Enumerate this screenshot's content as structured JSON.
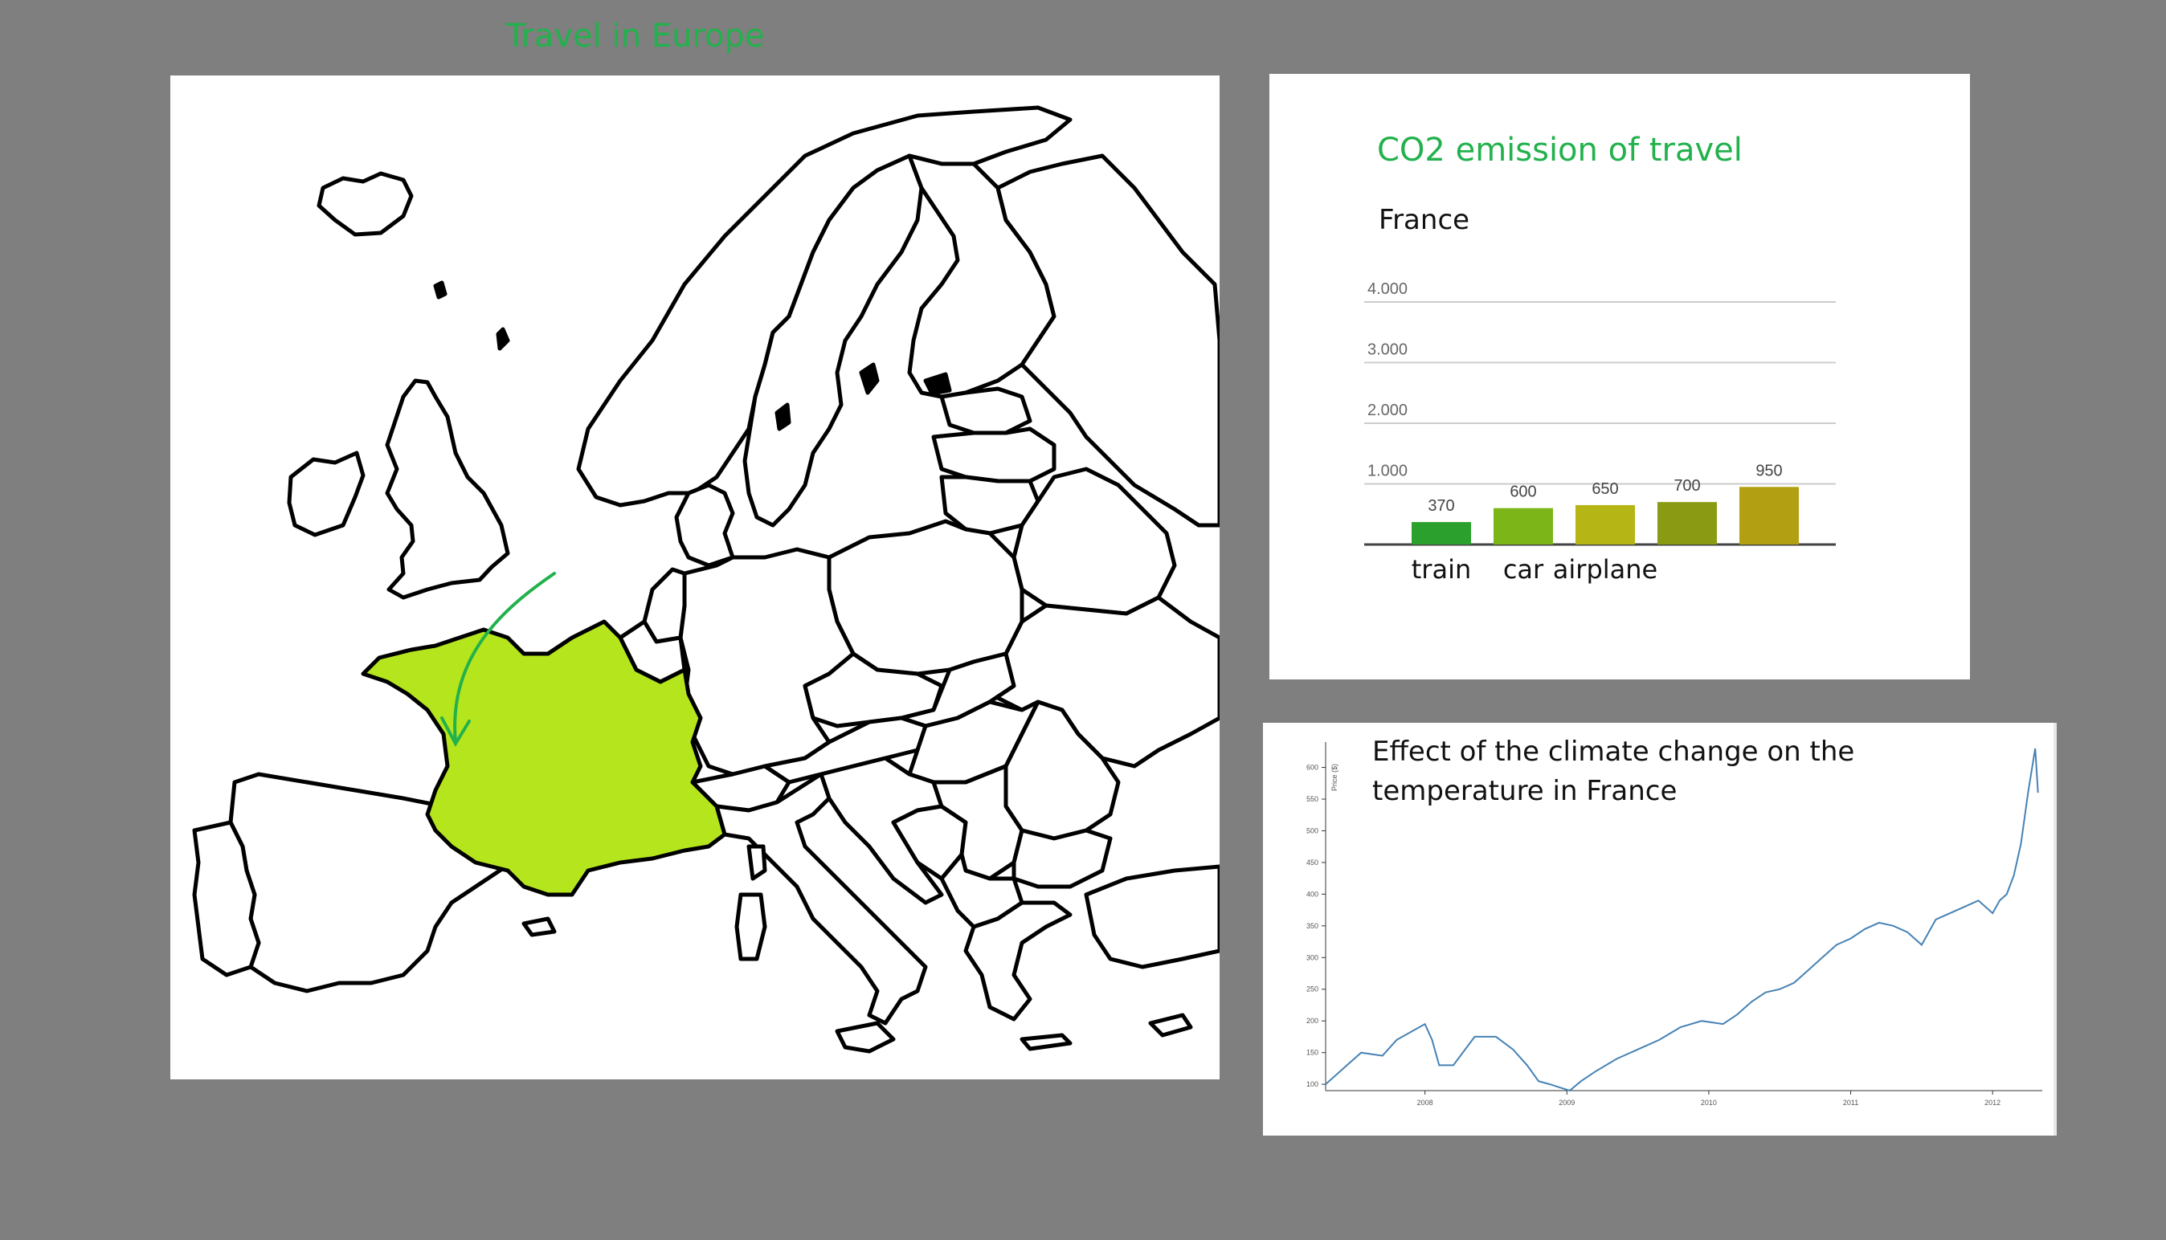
{
  "page": {
    "title": "Travel in Europe",
    "title_color": "#22b14c",
    "background": "#7f7f7f"
  },
  "map": {
    "highlighted_country": "France",
    "highlight_color": "#b5e61d",
    "arrow_color": "#22b14c",
    "outline_color": "#000000"
  },
  "co2_card": {
    "title": "CO2 emission of travel",
    "country": "France",
    "chart_data": {
      "type": "bar",
      "categories": [
        "train",
        "car",
        "airplane",
        "",
        ""
      ],
      "values": [
        370,
        600,
        650,
        700,
        950
      ],
      "value_labels": [
        "370",
        "600",
        "650",
        "700",
        "950"
      ],
      "y_ticks": [
        "1.000",
        "2.000",
        "3.000",
        "4.000"
      ],
      "y_tick_values": [
        1000,
        2000,
        3000,
        4000
      ],
      "ylim": [
        0,
        4000
      ],
      "bar_colors": [
        "#2ca02c",
        "#7cb518",
        "#b5b516",
        "#8a9a13",
        "#b3a012"
      ],
      "grid": true
    }
  },
  "climate_card": {
    "title": "Effect of the climate change on the temperature in France",
    "chart_data": {
      "type": "line",
      "ylabel": "Price ($)",
      "y_ticks": [
        "100",
        "150",
        "200",
        "250",
        "300",
        "350",
        "400",
        "450",
        "500",
        "550",
        "600"
      ],
      "y_tick_values": [
        100,
        150,
        200,
        250,
        300,
        350,
        400,
        450,
        500,
        550,
        600
      ],
      "x_ticks": [
        "2008",
        "2009",
        "2010",
        "2011",
        "2012"
      ],
      "x_tick_values": [
        2008,
        2009,
        2010,
        2011,
        2012
      ],
      "xlim": [
        2007.3,
        2012.35
      ],
      "ylim": [
        90,
        640
      ],
      "line_color": "#4682b4",
      "x": [
        2007.3,
        2007.45,
        2007.55,
        2007.7,
        2007.8,
        2007.92,
        2008.0,
        2008.05,
        2008.1,
        2008.2,
        2008.35,
        2008.5,
        2008.62,
        2008.72,
        2008.8,
        2008.88,
        2008.95,
        2009.02,
        2009.1,
        2009.2,
        2009.35,
        2009.5,
        2009.65,
        2009.8,
        2009.95,
        2010.1,
        2010.2,
        2010.3,
        2010.4,
        2010.5,
        2010.6,
        2010.7,
        2010.8,
        2010.9,
        2011.0,
        2011.1,
        2011.2,
        2011.3,
        2011.4,
        2011.5,
        2011.6,
        2011.7,
        2011.8,
        2011.9,
        2012.0,
        2012.05,
        2012.1,
        2012.15,
        2012.2,
        2012.25,
        2012.3,
        2012.32
      ],
      "y": [
        100,
        130,
        150,
        145,
        170,
        185,
        195,
        170,
        130,
        130,
        175,
        175,
        155,
        130,
        105,
        100,
        95,
        90,
        105,
        120,
        140,
        155,
        170,
        190,
        200,
        195,
        210,
        230,
        245,
        250,
        260,
        280,
        300,
        320,
        330,
        345,
        355,
        350,
        340,
        320,
        360,
        370,
        380,
        390,
        370,
        390,
        400,
        430,
        480,
        560,
        630,
        560
      ]
    }
  }
}
